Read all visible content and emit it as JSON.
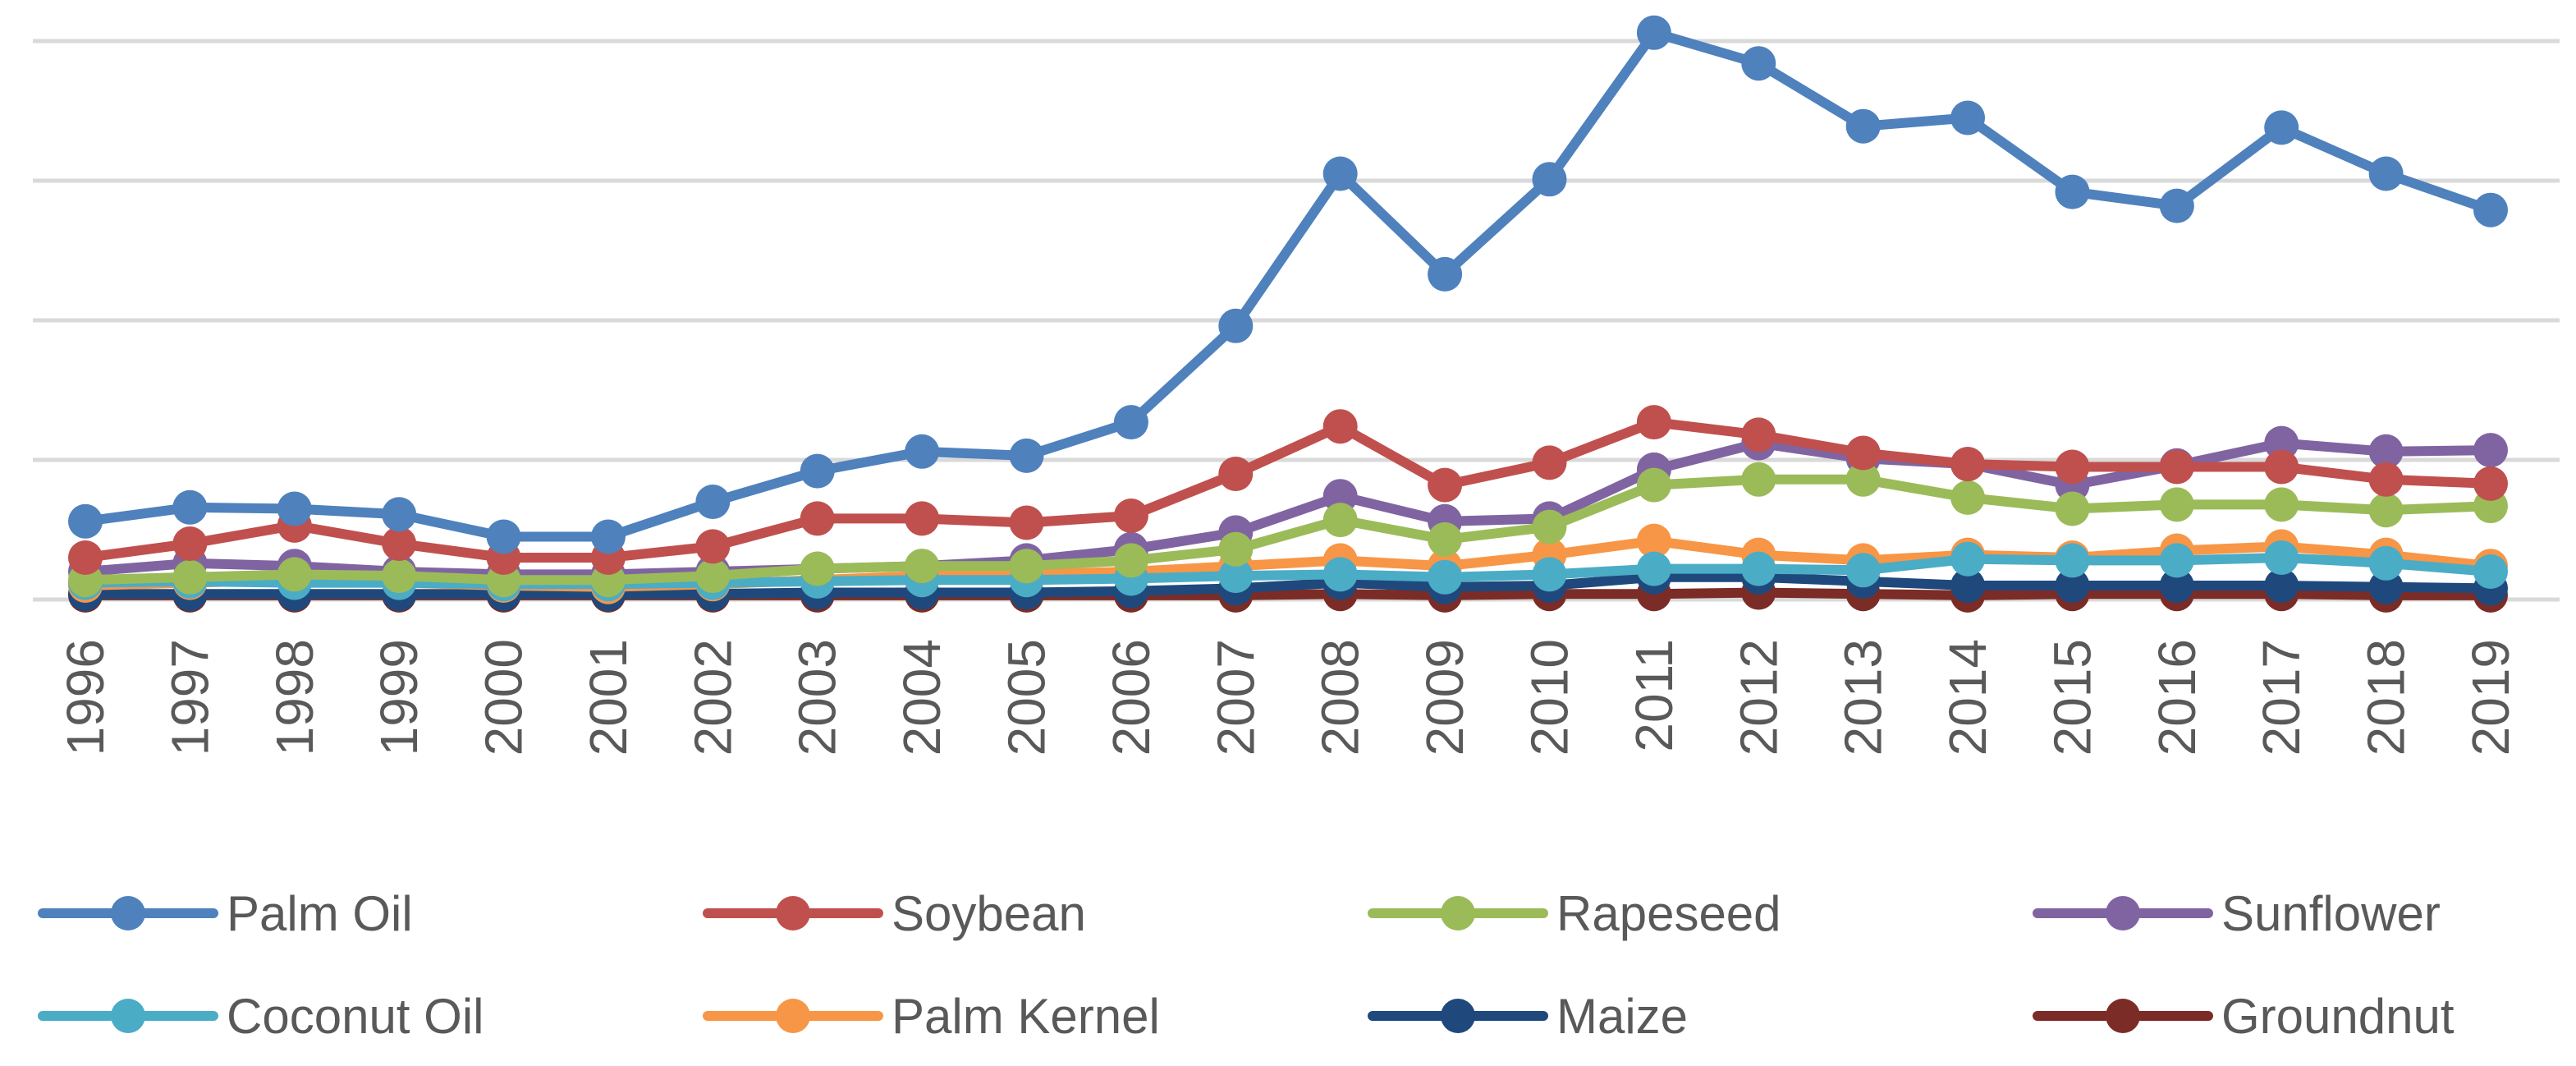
{
  "chart_data": {
    "type": "line",
    "title": "",
    "xlabel": "",
    "ylabel": "",
    "ylim": [
      0,
      400
    ],
    "grid": true,
    "legend_position": "bottom",
    "x": [
      "1996",
      "1997",
      "1998",
      "1999",
      "2000",
      "2001",
      "2002",
      "2003",
      "2004",
      "2005",
      "2006",
      "2007",
      "2008",
      "2009",
      "2010",
      "2011",
      "2012",
      "2013",
      "2014",
      "2015",
      "2016",
      "2017",
      "2018",
      "2019"
    ],
    "series": [
      {
        "name": "Palm Oil",
        "color": "#4F81BD",
        "values": [
          56,
          66,
          65,
          61,
          45,
          45,
          70,
          92,
          106,
          103,
          127,
          196,
          305,
          233,
          301,
          406,
          384,
          339,
          345,
          292,
          282,
          338,
          305,
          279
        ]
      },
      {
        "name": "Soybean",
        "color": "#C0504D",
        "values": [
          30,
          40,
          53,
          40,
          30,
          30,
          38,
          58,
          58,
          55,
          60,
          90,
          124,
          82,
          98,
          127,
          118,
          105,
          97,
          95,
          95,
          95,
          86,
          83
        ]
      },
      {
        "name": "Rapeseed",
        "color": "#9BBB59",
        "values": [
          14,
          16,
          18,
          17,
          14,
          14,
          17,
          22,
          24,
          24,
          28,
          36,
          57,
          43,
          52,
          82,
          86,
          86,
          73,
          65,
          68,
          68,
          64,
          67
        ]
      },
      {
        "name": "Sunflower",
        "color": "#8064A2",
        "values": [
          20,
          26,
          24,
          20,
          18,
          18,
          20,
          22,
          24,
          28,
          36,
          48,
          74,
          56,
          58,
          93,
          112,
          101,
          97,
          82,
          96,
          112,
          106,
          107
        ]
      },
      {
        "name": "Coconut Oil",
        "color": "#4BACC6",
        "values": [
          12,
          13,
          12,
          12,
          11,
          11,
          12,
          13,
          14,
          14,
          15,
          17,
          18,
          16,
          18,
          22,
          22,
          21,
          29,
          28,
          28,
          30,
          26,
          20
        ]
      },
      {
        "name": "Palm Kernel",
        "color": "#F79646",
        "values": [
          10,
          12,
          14,
          12,
          10,
          9,
          11,
          14,
          17,
          18,
          20,
          24,
          28,
          24,
          32,
          42,
          32,
          28,
          32,
          30,
          35,
          38,
          32,
          24
        ]
      },
      {
        "name": "Maize",
        "color": "#1F497D",
        "values": [
          4,
          4,
          4,
          4,
          4,
          4,
          4,
          5,
          5,
          5,
          6,
          8,
          12,
          9,
          10,
          16,
          16,
          13,
          10,
          10,
          10,
          10,
          9,
          8
        ]
      },
      {
        "name": "Groundnut",
        "color": "#7B2C26",
        "values": [
          3,
          3,
          3,
          3,
          3,
          3,
          3,
          3,
          3,
          3,
          3,
          3,
          4,
          3,
          4,
          4,
          5,
          4,
          3,
          4,
          4,
          4,
          3,
          3
        ]
      }
    ]
  }
}
